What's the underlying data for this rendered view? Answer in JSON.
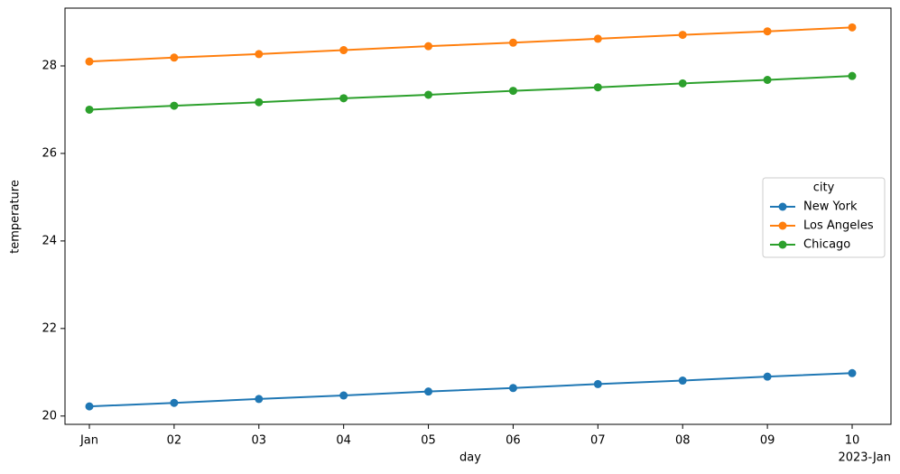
{
  "chart_data": {
    "type": "line",
    "xlabel": "day",
    "ylabel": "temperature",
    "x_offset_label": "2023-Jan",
    "categories": [
      "Jan",
      "02",
      "03",
      "04",
      "05",
      "06",
      "07",
      "08",
      "09",
      "10"
    ],
    "series": [
      {
        "name": "New York",
        "color": "#1f77b4",
        "values": [
          20.22,
          20.3,
          20.39,
          20.47,
          20.56,
          20.64,
          20.73,
          20.81,
          20.9,
          20.98
        ]
      },
      {
        "name": "Los Angeles",
        "color": "#ff7f0e",
        "values": [
          28.1,
          28.19,
          28.27,
          28.36,
          28.45,
          28.53,
          28.62,
          28.71,
          28.79,
          28.88
        ]
      },
      {
        "name": "Chicago",
        "color": "#2ca02c",
        "values": [
          27.0,
          27.09,
          27.17,
          27.26,
          27.34,
          27.43,
          27.51,
          27.6,
          27.68,
          27.77
        ]
      }
    ],
    "ylim": [
      19.81,
      29.32
    ],
    "yticks": [
      20,
      22,
      24,
      26,
      28
    ],
    "legend_title": "city",
    "legend": "center right",
    "grid": false
  }
}
